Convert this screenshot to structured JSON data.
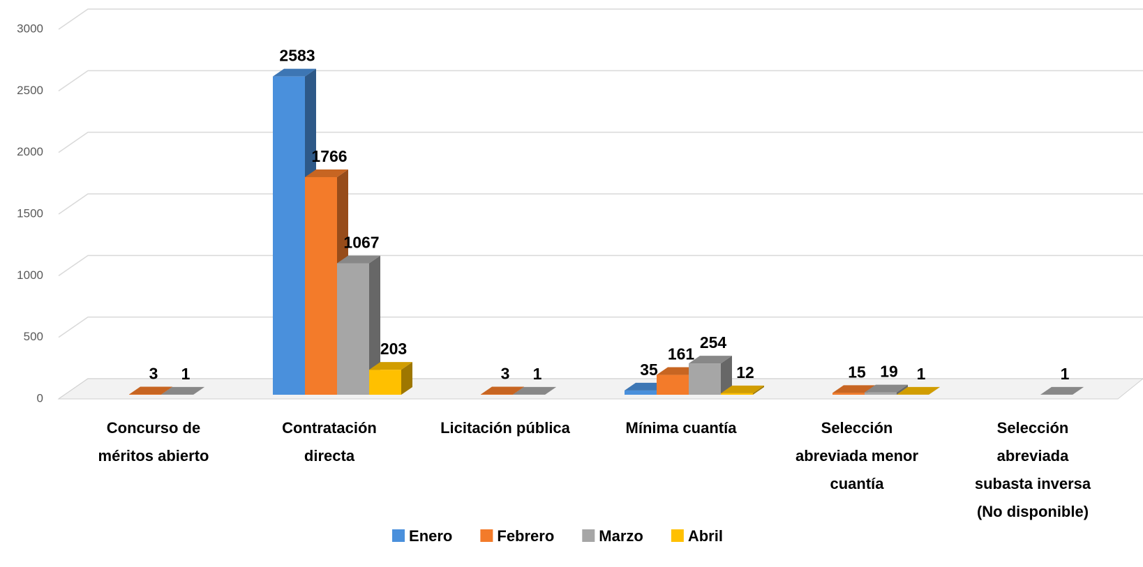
{
  "chart_data": {
    "type": "bar3d",
    "categories": [
      "Concurso de\nméritos abierto",
      "Contratación\ndirecta",
      "Licitación pública",
      "Mínima cuantía",
      "Selección\nabreviada menor\ncuantía",
      "Selección\nabreviada\nsubasta inversa\n(No disponible)"
    ],
    "series": [
      {
        "name": "Enero",
        "color": "#4a90dc",
        "values": [
          null,
          2583,
          null,
          35,
          null,
          null
        ]
      },
      {
        "name": "Febrero",
        "color": "#f37b2a",
        "values": [
          3,
          1766,
          3,
          161,
          15,
          null
        ]
      },
      {
        "name": "Marzo",
        "color": "#a6a6a6",
        "values": [
          1,
          1067,
          1,
          254,
          19,
          1
        ]
      },
      {
        "name": "Abril",
        "color": "#ffc000",
        "values": [
          null,
          203,
          null,
          12,
          1,
          null
        ]
      }
    ],
    "ylim": [
      0,
      3000
    ],
    "yticks": [
      0,
      500,
      1000,
      1500,
      2000,
      2500,
      3000
    ],
    "grid": true,
    "legend": "bottom"
  }
}
